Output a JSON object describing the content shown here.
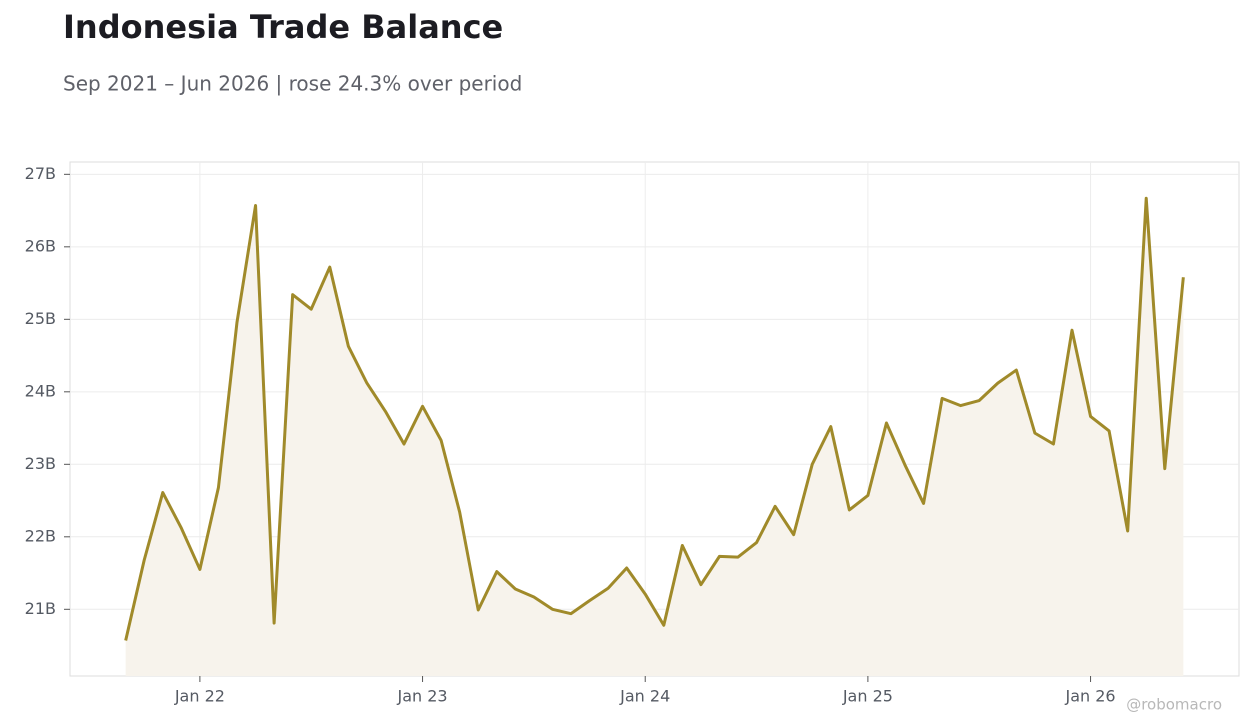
{
  "chart_data": {
    "type": "line",
    "title": "Indonesia Trade Balance",
    "subtitle": "Sep 2021 – Jun 2026 | rose 24.3% over period",
    "watermark": "@robomacro",
    "x": [
      "2021-09",
      "2021-10",
      "2021-11",
      "2021-12",
      "2022-01",
      "2022-02",
      "2022-03",
      "2022-04",
      "2022-05",
      "2022-06",
      "2022-07",
      "2022-08",
      "2022-09",
      "2022-10",
      "2022-11",
      "2022-12",
      "2023-01",
      "2023-02",
      "2023-03",
      "2023-04",
      "2023-05",
      "2023-06",
      "2023-07",
      "2023-08",
      "2023-09",
      "2023-10",
      "2023-11",
      "2023-12",
      "2024-01",
      "2024-02",
      "2024-03",
      "2024-04",
      "2024-05",
      "2024-06",
      "2024-07",
      "2024-08",
      "2024-09",
      "2024-10",
      "2024-11",
      "2024-12",
      "2025-01",
      "2025-02",
      "2025-03",
      "2025-04",
      "2025-05",
      "2025-06",
      "2025-07",
      "2025-08",
      "2025-09",
      "2025-10",
      "2025-11",
      "2025-12",
      "2026-01",
      "2026-02",
      "2026-03",
      "2026-04",
      "2026-05",
      "2026-06"
    ],
    "values": [
      20.57,
      21.68,
      22.61,
      22.12,
      21.55,
      22.68,
      24.96,
      26.57,
      20.81,
      25.34,
      25.14,
      25.72,
      24.63,
      24.12,
      23.73,
      23.28,
      23.8,
      23.33,
      22.34,
      20.99,
      21.52,
      21.28,
      21.17,
      21.0,
      20.94,
      21.12,
      21.29,
      21.57,
      21.21,
      20.78,
      21.88,
      21.34,
      21.73,
      21.72,
      21.92,
      22.42,
      22.03,
      23.0,
      23.52,
      22.37,
      22.57,
      23.57,
      22.99,
      22.46,
      23.91,
      23.81,
      23.88,
      24.12,
      24.3,
      23.43,
      23.28,
      24.85,
      23.66,
      23.46,
      22.08,
      26.67,
      22.94,
      25.58
    ],
    "color": "#a08a2a",
    "fill_color": "#f7f3ec",
    "xlim": [
      "2021-06",
      "2026-09"
    ],
    "xticks": [
      {
        "value": "2022-01",
        "label": "Jan 22"
      },
      {
        "value": "2023-01",
        "label": "Jan 23"
      },
      {
        "value": "2024-01",
        "label": "Jan 24"
      },
      {
        "value": "2025-01",
        "label": "Jan 25"
      },
      {
        "value": "2026-01",
        "label": "Jan 26"
      }
    ],
    "ylim": [
      20.08,
      27.17
    ],
    "yticks": [
      {
        "value": 21,
        "label": "21B"
      },
      {
        "value": 22,
        "label": "22B"
      },
      {
        "value": 23,
        "label": "23B"
      },
      {
        "value": 24,
        "label": "24B"
      },
      {
        "value": 25,
        "label": "25B"
      },
      {
        "value": 26,
        "label": "26B"
      },
      {
        "value": 27,
        "label": "27B"
      }
    ],
    "grid": true
  }
}
